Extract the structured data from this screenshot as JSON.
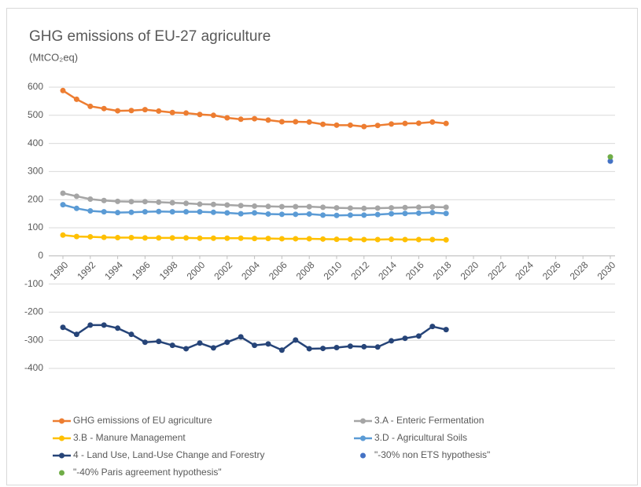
{
  "chart_data": {
    "type": "line",
    "title": "GHG emissions of EU-27 agriculture",
    "subtitle": "(MtCO₂eq)",
    "x": [
      1990,
      1991,
      1992,
      1993,
      1994,
      1995,
      1996,
      1997,
      1998,
      1999,
      2000,
      2001,
      2002,
      2003,
      2004,
      2005,
      2006,
      2007,
      2008,
      2009,
      2010,
      2011,
      2012,
      2013,
      2014,
      2015,
      2016,
      2017,
      2018
    ],
    "xlim": [
      1990,
      2030
    ],
    "xticks": [
      1990,
      1992,
      1994,
      1996,
      1998,
      2000,
      2002,
      2004,
      2006,
      2008,
      2010,
      2012,
      2014,
      2016,
      2018,
      2020,
      2022,
      2024,
      2026,
      2028,
      2030
    ],
    "ylim": [
      -400,
      600
    ],
    "yticks": [
      -400,
      -300,
      -200,
      -100,
      0,
      100,
      200,
      300,
      400,
      500,
      600
    ],
    "grid": true,
    "legend": "bottom",
    "series": [
      {
        "name": "GHG emissions of EU agriculture",
        "color": "#ed7d31",
        "values": [
          588,
          557,
          532,
          524,
          516,
          517,
          520,
          515,
          510,
          508,
          503,
          500,
          491,
          486,
          488,
          483,
          477,
          477,
          476,
          468,
          465,
          465,
          460,
          464,
          469,
          471,
          472,
          476,
          471
        ]
      },
      {
        "name": "3.A - Enteric Fermentation",
        "color": "#a5a5a5",
        "values": [
          223,
          212,
          202,
          197,
          194,
          193,
          193,
          191,
          189,
          187,
          184,
          183,
          181,
          179,
          177,
          176,
          175,
          175,
          175,
          173,
          171,
          170,
          169,
          170,
          171,
          172,
          173,
          174,
          173
        ]
      },
      {
        "name": "3.B - Manure Management",
        "color": "#ffc000",
        "values": [
          74,
          69,
          68,
          66,
          65,
          65,
          64,
          64,
          64,
          64,
          63,
          63,
          63,
          63,
          62,
          62,
          61,
          61,
          61,
          60,
          59,
          59,
          58,
          58,
          59,
          58,
          58,
          58,
          57
        ]
      },
      {
        "name": "3.D - Agricultural Soils",
        "color": "#5b9bd5",
        "values": [
          182,
          169,
          160,
          157,
          154,
          155,
          157,
          158,
          157,
          157,
          157,
          155,
          153,
          150,
          153,
          149,
          148,
          148,
          149,
          145,
          144,
          145,
          145,
          147,
          150,
          151,
          152,
          154,
          151
        ]
      },
      {
        "name": "4 - Land Use, Land-Use Change and Forestry",
        "color": "#264478",
        "values": [
          -254,
          -279,
          -246,
          -246,
          -257,
          -279,
          -307,
          -304,
          -318,
          -330,
          -310,
          -327,
          -307,
          -288,
          -318,
          -313,
          -335,
          -299,
          -330,
          -329,
          -326,
          -321,
          -323,
          -324,
          -302,
          -293,
          -285,
          -251,
          -262
        ]
      },
      {
        "name": "\"-30% non ETS hypothesis\"",
        "type": "scatter",
        "color": "#4472c4",
        "x": [
          2030
        ],
        "values": [
          337
        ]
      },
      {
        "name": "\"-40% Paris agreement hypothesis\"",
        "type": "scatter",
        "color": "#70ad47",
        "x": [
          2030
        ],
        "values": [
          352
        ]
      }
    ]
  }
}
